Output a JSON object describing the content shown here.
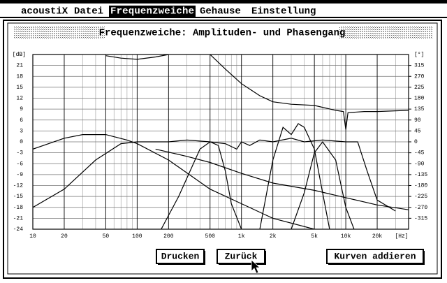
{
  "menu": [
    "acoustiX",
    "Datei",
    "Frequenzweiche",
    "Gehause",
    "Einstellung"
  ],
  "window": {
    "title": "Frequenzweiche: Amplituden- und Phasengang"
  },
  "buttons": [
    "Drucken",
    "Zurück",
    "Kurven addieren"
  ],
  "chart_data": {
    "type": "line",
    "xscale": "log",
    "grid": true,
    "xlim": [
      10,
      40000
    ],
    "ylim": [
      -24,
      24
    ],
    "y2lim": [
      -360,
      360
    ],
    "ylabel": "[dB]",
    "y2label": "[°]",
    "xlabel": "[Hz]",
    "xticks": [
      10,
      20,
      50,
      100,
      200,
      500,
      {
        "value": 1000,
        "label": "1k"
      },
      {
        "value": 2000,
        "label": "2k"
      },
      {
        "value": 5000,
        "label": "5k"
      },
      {
        "value": 10000,
        "label": "10k"
      },
      {
        "value": 20000,
        "label": "20k"
      }
    ],
    "x_minor_ticks": [
      30,
      40,
      60,
      70,
      80,
      90,
      300,
      400,
      600,
      700,
      800,
      900,
      3000,
      4000,
      6000,
      7000,
      8000,
      9000,
      30000
    ],
    "yticks": [
      -24,
      -21,
      -18,
      -15,
      -12,
      -9,
      -6,
      -3,
      0,
      3,
      6,
      9,
      12,
      15,
      18,
      21
    ],
    "y2ticks": [
      -315,
      -270,
      -225,
      -180,
      -135,
      -90,
      -45,
      0,
      45,
      90,
      135,
      180,
      225,
      270,
      315
    ],
    "series": [
      {
        "color": "#000000",
        "axis": "y",
        "x": [
          10,
          20,
          30,
          50,
          80,
          100,
          200,
          500,
          1000,
          2000,
          5000
        ],
        "values": [
          -2,
          1,
          2,
          2,
          0.5,
          -0.5,
          -5,
          -13,
          -17,
          -21,
          -24
        ]
      },
      {
        "color": "#000000",
        "axis": "y",
        "x": [
          10,
          20,
          40,
          70,
          100,
          200,
          300,
          500,
          700,
          900,
          1000,
          1200,
          1500,
          2000,
          3000,
          4000,
          6000,
          10000,
          13000,
          16000,
          20000,
          30000
        ],
        "values": [
          -18,
          -13,
          -5,
          -0.5,
          0,
          0,
          0.5,
          0,
          -0.5,
          -2,
          0,
          -1,
          0.5,
          0,
          1,
          0,
          0.5,
          0,
          0,
          -8,
          -16,
          -19
        ]
      },
      {
        "color": "#000000",
        "axis": "y",
        "x": [
          170,
          250,
          400,
          500,
          600,
          700,
          800,
          1000
        ],
        "values": [
          -24,
          -15,
          -2,
          0,
          -1,
          -8,
          -17,
          -24
        ]
      },
      {
        "color": "#000000",
        "axis": "y",
        "x": [
          1500,
          2000,
          2500,
          3000,
          3500,
          4000,
          5000,
          6000,
          7000
        ],
        "values": [
          -24,
          -5,
          4,
          2,
          5,
          4,
          -2,
          -14,
          -24
        ]
      },
      {
        "color": "#000000",
        "axis": "y",
        "x": [
          3000,
          4000,
          5000,
          6000,
          8000,
          10000,
          12000
        ],
        "values": [
          -24,
          -14,
          -3,
          0,
          -5,
          -18,
          -24
        ]
      },
      {
        "color": "#000000",
        "axis": "y2",
        "x": [
          50,
          70,
          100,
          150,
          200
        ],
        "values": [
          355,
          345,
          340,
          350,
          360
        ]
      },
      {
        "color": "#000000",
        "axis": "y2",
        "x": [
          500,
          700,
          1000,
          1500,
          2000,
          3000,
          5000,
          8000,
          9500,
          10000,
          10500,
          15000,
          20000,
          40000
        ],
        "values": [
          360,
          300,
          240,
          190,
          165,
          155,
          150,
          130,
          125,
          50,
          120,
          125,
          125,
          130
        ]
      },
      {
        "color": "#000000",
        "axis": "y2",
        "x": [
          150,
          300,
          500,
          1000,
          2000,
          5000,
          10000,
          20000,
          40000
        ],
        "values": [
          -30,
          -60,
          -85,
          -130,
          -170,
          -200,
          -230,
          -260,
          -280
        ]
      }
    ]
  }
}
